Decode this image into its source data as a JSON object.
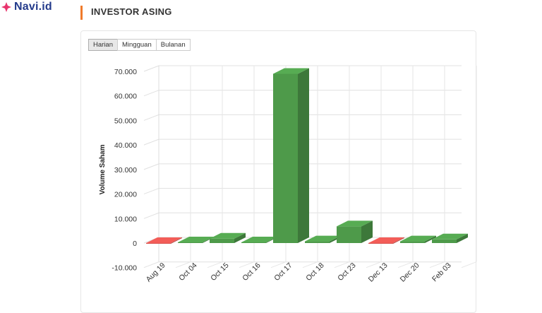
{
  "brand": {
    "name": "Navi.id",
    "icon": "navi-diamond-icon",
    "color": "#233a8b",
    "icon_color": "#e8336d"
  },
  "section": {
    "title": "INVESTOR ASING",
    "accent": "#f07a2a"
  },
  "tabs": [
    {
      "label": "Harian",
      "active": true
    },
    {
      "label": "Mingguan",
      "active": false
    },
    {
      "label": "Bulanan",
      "active": false
    }
  ],
  "chart_data": {
    "type": "bar",
    "ylabel": "Volume Saham",
    "ylim": [
      -10000,
      70000
    ],
    "yticks": [
      -10000,
      0,
      10000,
      20000,
      30000,
      40000,
      50000,
      60000,
      70000
    ],
    "ytick_labels": [
      "-10.000",
      "0",
      "10.000",
      "20.000",
      "30.000",
      "40.000",
      "50.000",
      "60.000",
      "70.000"
    ],
    "categories": [
      "Aug 19",
      "Oct 04",
      "Oct 15",
      "Oct 16",
      "Oct 17",
      "Oct 18",
      "Oct 23",
      "Dec 13",
      "Dec 20",
      "Feb 03"
    ],
    "values": [
      -300,
      300,
      1800,
      300,
      69000,
      700,
      6800,
      -300,
      700,
      1500
    ],
    "positive_color": "#4e9a4a",
    "negative_color": "#d9534f",
    "grid": true
  }
}
